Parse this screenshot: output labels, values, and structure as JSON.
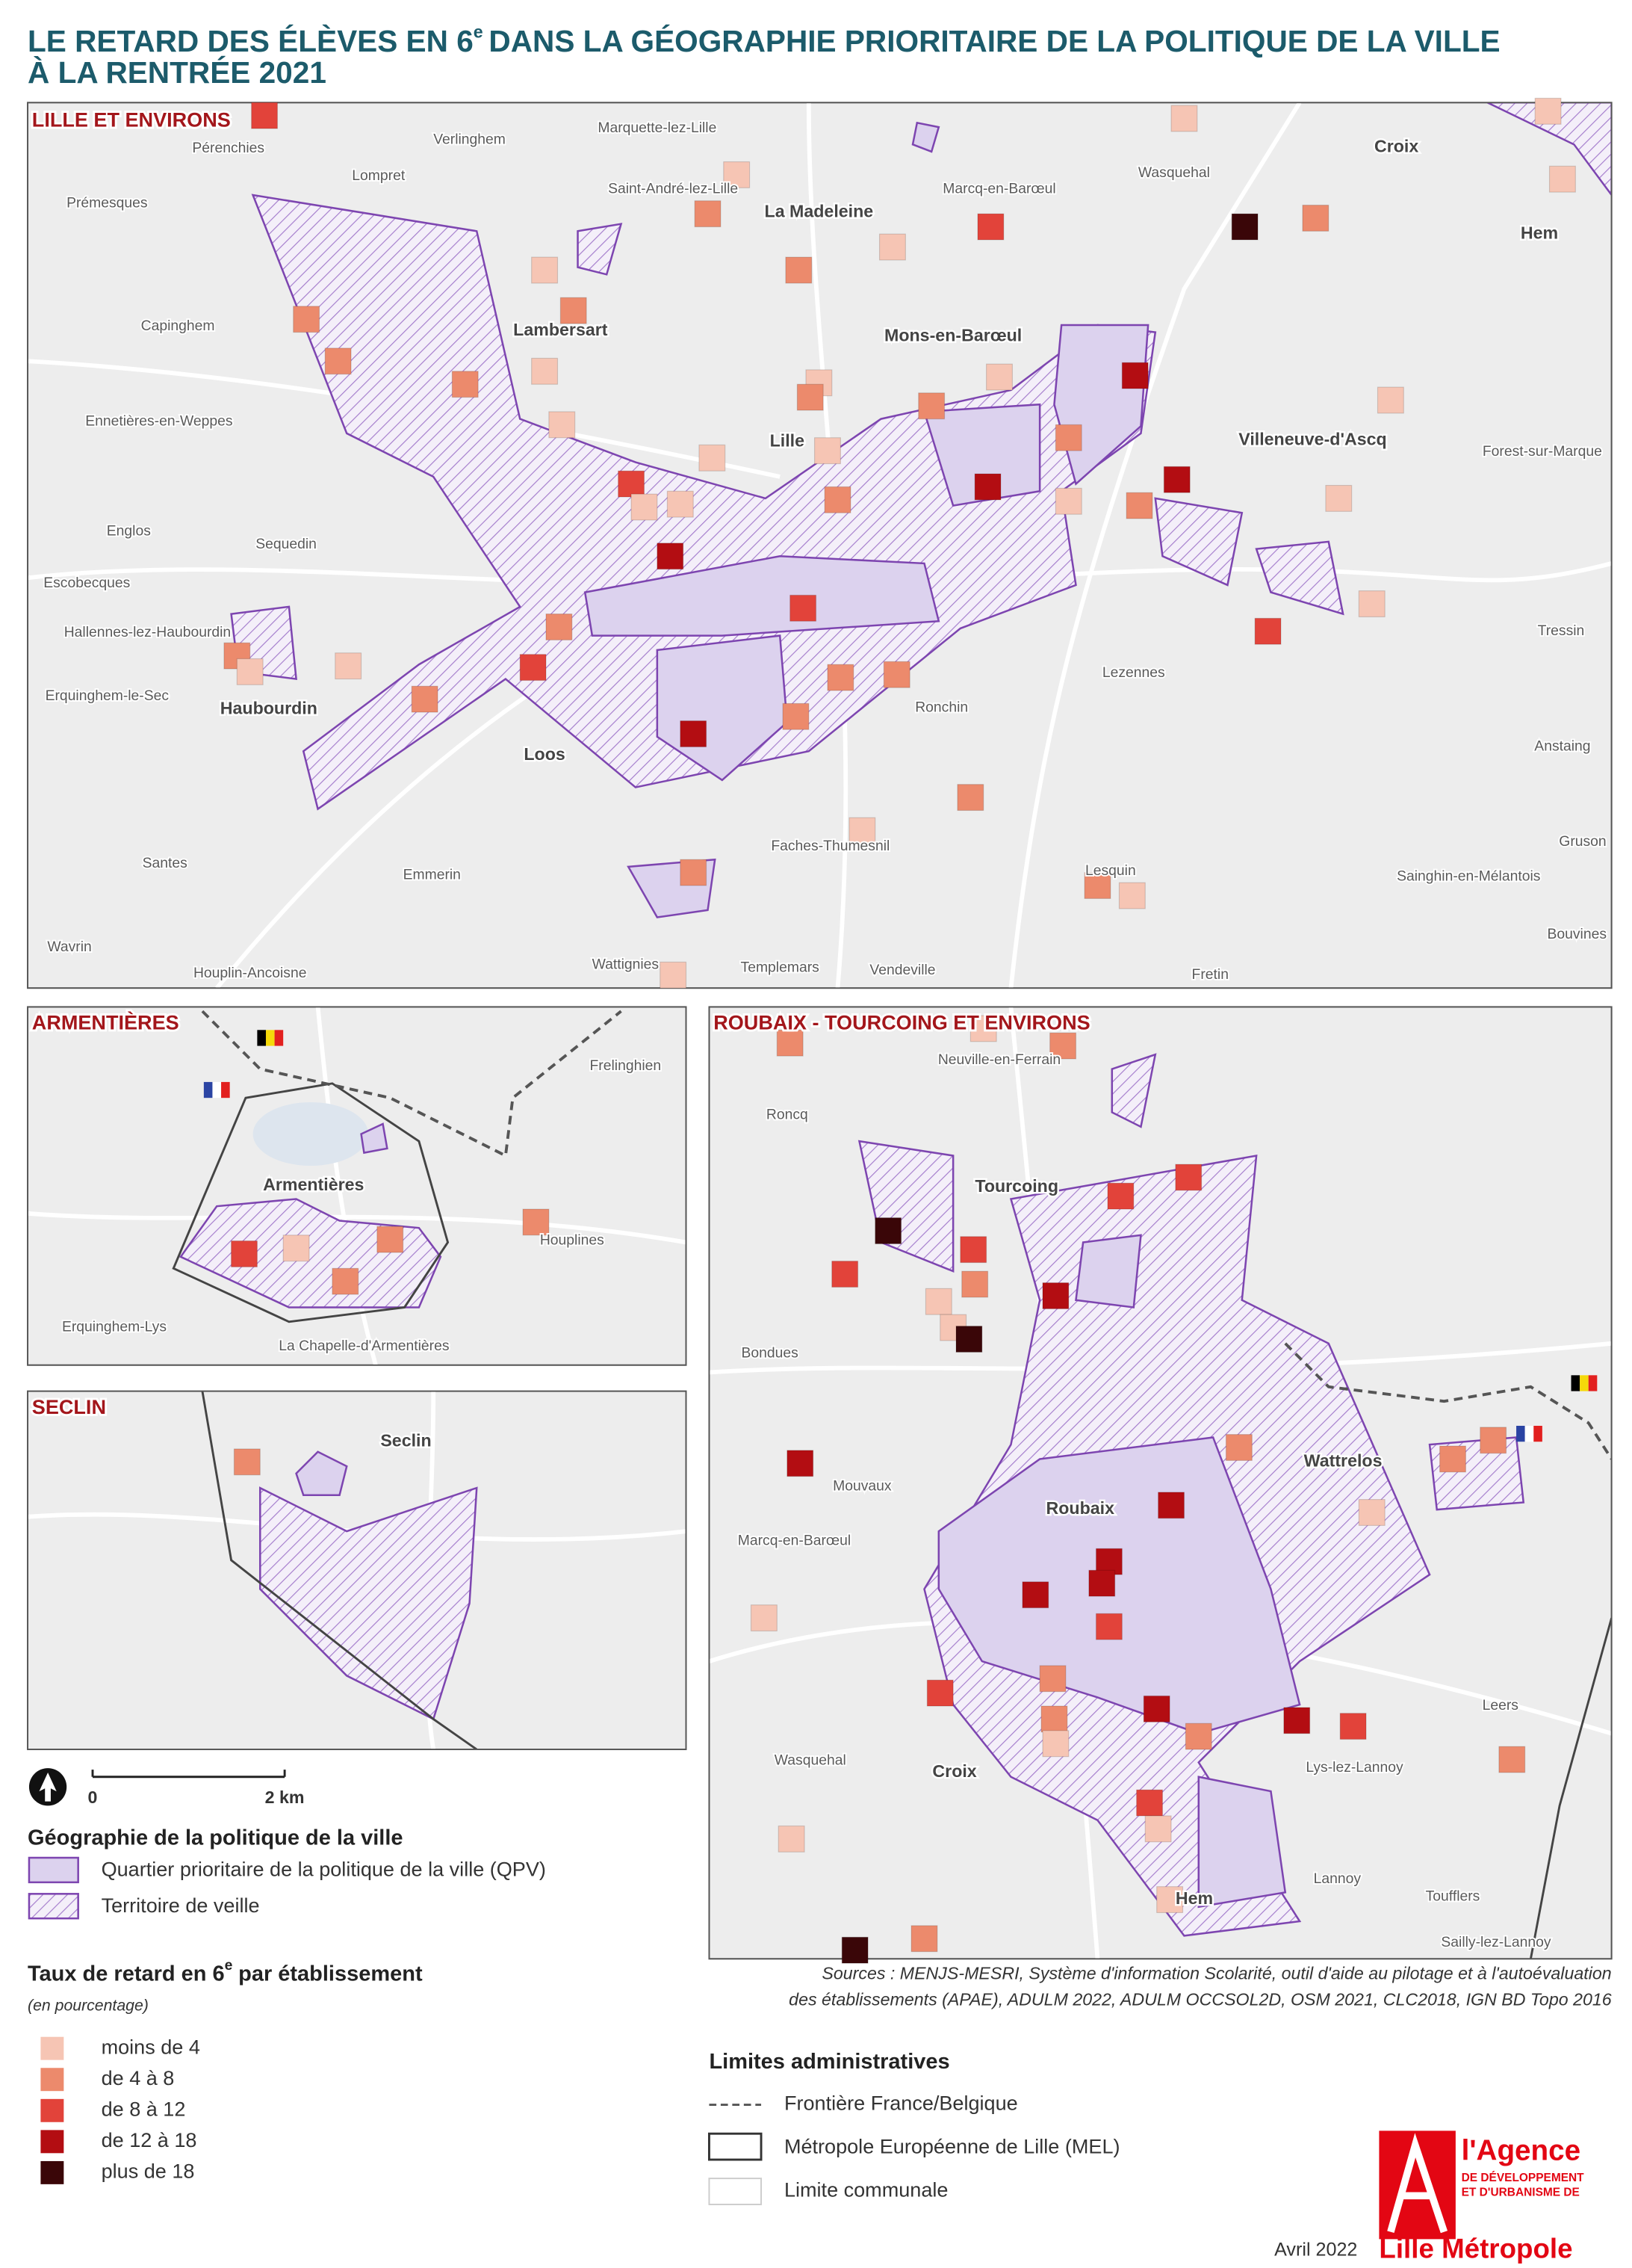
{
  "title": {
    "line1_a": "LE RETARD DES ÉLÈVES EN 6",
    "line1_sup": "e",
    "line1_b": "DANS LA GÉOGRAPHIE PRIORITAIRE DE LA POLITIQUE DE LA VILLE",
    "line2": "À LA RENTRÉE 2021"
  },
  "maps": [
    {
      "title": "LILLE ET ENVIRONS",
      "towns": [
        "Croix",
        "La Madeleine",
        "Hem",
        "Lambersart",
        "Mons-en-Barœul",
        "Lille",
        "Villeneuve-d'Ascq",
        "Haubourdin",
        "Loos"
      ],
      "places": [
        "Pérenchies",
        "Verlinghem",
        "Marquette-lez-Lille",
        "Lompret",
        "Prémesques",
        "Saint-André-lez-Lille",
        "Marcq-en-Barœul",
        "Wasquehal",
        "Capinghem",
        "Ennetières-en-Weppes",
        "Forest-sur-Marque",
        "Englos",
        "Sequedin",
        "Escobecques",
        "Hallennes-lez-Haubourdin",
        "Tressin",
        "Lezennes",
        "Erquinghem-le-Sec",
        "Ronchin",
        "Anstaing",
        "Gruson",
        "Santes",
        "Faches-Thumesnil",
        "Emmerin",
        "Lesquin",
        "Sainghin-en-Mélantois",
        "Bouvines",
        "Wavrin",
        "Houplin-Ancoisne",
        "Wattignies",
        "Templemars",
        "Vendeville",
        "Fretin"
      ]
    },
    {
      "title": "ARMENTIÈRES",
      "towns": [
        "Armentières"
      ],
      "places": [
        "Frelinghien",
        "Houplines",
        "Erquinghem-Lys",
        "La Chapelle-d'Armentières"
      ]
    },
    {
      "title": "SECLIN",
      "towns": [
        "Seclin"
      ],
      "places": []
    },
    {
      "title": "ROUBAIX - TOURCOING ET ENVIRONS",
      "towns": [
        "Tourcoing",
        "Wattrelos",
        "Roubaix",
        "Croix",
        "Hem"
      ],
      "places": [
        "Neuville-en-Ferrain",
        "Roncq",
        "Bondues",
        "Mouvaux",
        "Marcq-en-Barœul",
        "Leers",
        "Wasquehal",
        "Lys-lez-Lannoy",
        "Lannoy",
        "Toufflers",
        "Sailly-lez-Lannoy"
      ]
    }
  ],
  "scale": {
    "start": "0",
    "end": "2 km"
  },
  "legend_geo": {
    "title": "Géographie de la politique de la ville",
    "items": [
      "Quartier prioritaire de la politique de la ville (QPV)",
      "Territoire de veille"
    ]
  },
  "legend_rate": {
    "title_a": "Taux de retard en 6",
    "title_sup": "e",
    "title_b": "par établissement",
    "subtitle": "(en pourcentage)",
    "classes": [
      {
        "label": "moins de 4",
        "color": "#f6c5b4"
      },
      {
        "label": "de 4 à 8",
        "color": "#ec8a6c"
      },
      {
        "label": "de 8 à 12",
        "color": "#e2433a"
      },
      {
        "label": "de 12 à 18",
        "color": "#b30d12"
      },
      {
        "label": "plus de 18",
        "color": "#3a0608"
      }
    ]
  },
  "sources": [
    "Sources : MENJS-MESRI, Système d'information Scolarité, outil d'aide au pilotage et à l'autoévaluation",
    "des établissements (APAE), ADULM 2022, ADULM OCCSOL2D, OSM 2021, CLC2018, IGN BD Topo 2016"
  ],
  "legend_limits": {
    "title": "Limites administratives",
    "items": [
      "Frontière France/Belgique",
      "Métropole Européenne de Lille (MEL)",
      "Limite communale"
    ]
  },
  "logo": {
    "l1": "l'Agence",
    "l2": "DE DÉVELOPPEMENT",
    "l3": "ET D'URBANISME DE",
    "l4": "Lille Métropole"
  },
  "date": "Avril 2022"
}
